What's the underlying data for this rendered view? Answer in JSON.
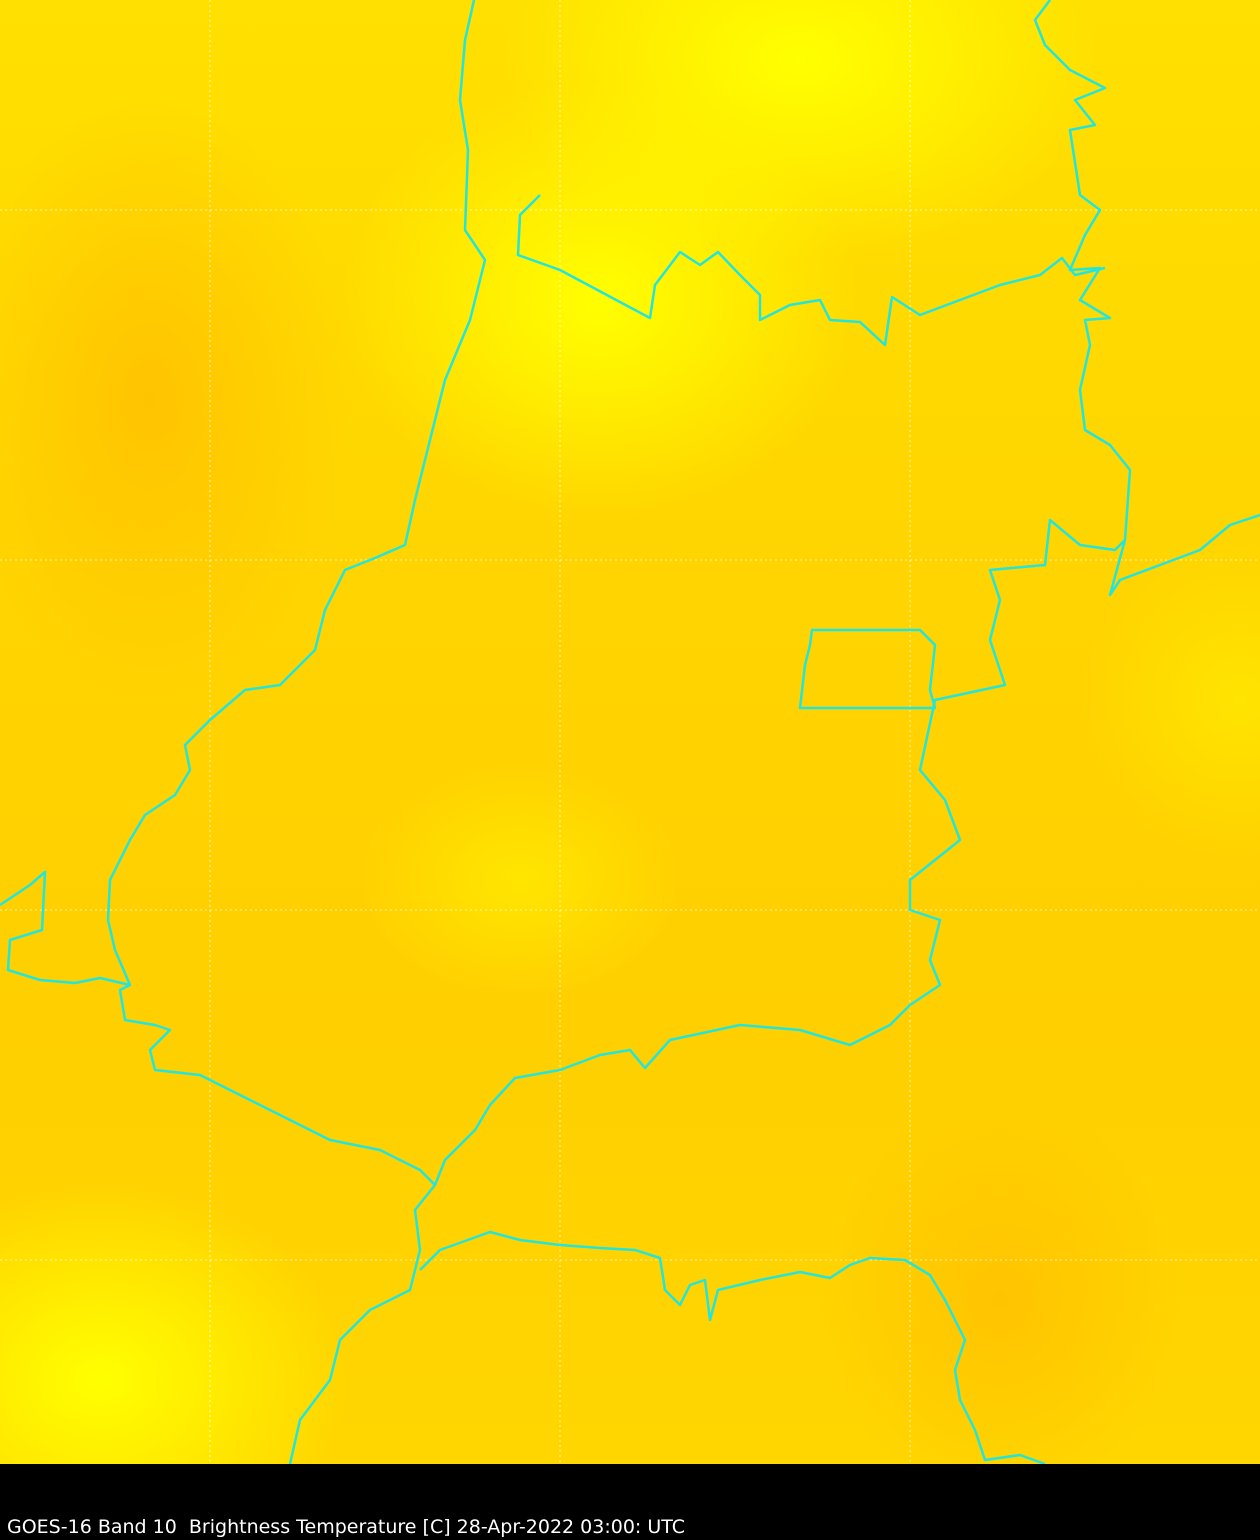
{
  "caption": "GOES-16 Band 10  Brightness Temperature [C] 28-Apr-2022 03:00: UTC",
  "colors": {
    "border": "#22e5dc",
    "grid": "#ffffff",
    "warm": "#ffcc00",
    "cool": "#ffff00",
    "background": "#000000"
  }
}
